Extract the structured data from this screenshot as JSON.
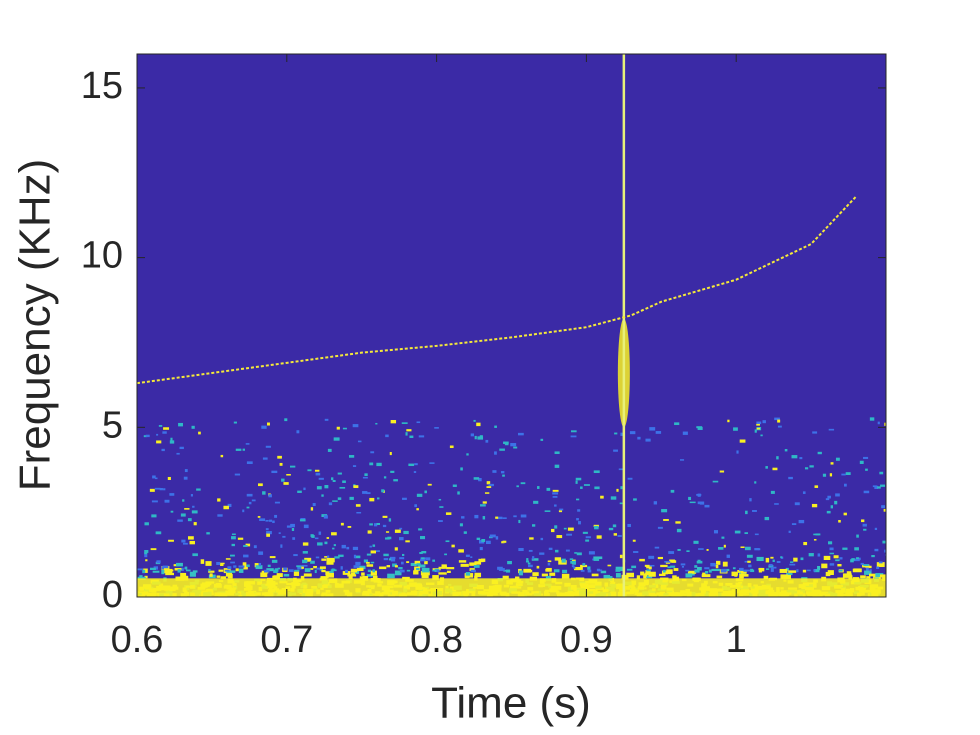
{
  "chart_data": {
    "type": "spectrogram",
    "xlabel": "Time (s)",
    "ylabel": "Frequency (KHz)",
    "xlim": [
      0.6,
      1.1
    ],
    "ylim": [
      0,
      16
    ],
    "xticks": [
      0.6,
      0.7,
      0.8,
      0.9,
      1
    ],
    "yticks": [
      0,
      5,
      10,
      15
    ],
    "background": "#3b2aa6",
    "x": [
      0.6,
      0.65,
      0.7,
      0.75,
      0.8,
      0.85,
      0.9,
      0.93,
      0.95,
      1.0,
      1.05,
      1.08
    ],
    "values": [
      6.3,
      6.6,
      6.9,
      7.2,
      7.4,
      7.65,
      7.95,
      8.3,
      8.7,
      9.35,
      10.4,
      11.8
    ],
    "color": "#f5e93a",
    "impulse_x": 0.925
  }
}
